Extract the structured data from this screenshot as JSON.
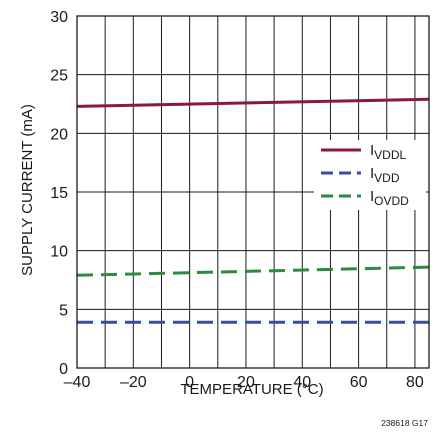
{
  "chart_data": {
    "type": "line",
    "title": "",
    "xlabel": "TEMPERATURE (°C)",
    "ylabel": "SUPPLY CURRENT (mA)",
    "xlim": [
      -40,
      85
    ],
    "ylim": [
      0,
      30
    ],
    "x_ticks": [
      "–40",
      "–20",
      "0",
      "20",
      "40",
      "60",
      "80"
    ],
    "y_ticks": [
      "0",
      "5",
      "10",
      "15",
      "20",
      "25",
      "30"
    ],
    "grid": true,
    "legend_position": "right",
    "series": [
      {
        "name": "I",
        "name_sub": "VDDL",
        "color": "#8b1a3a",
        "style": "solid",
        "x": [
          -40,
          85
        ],
        "y": [
          22.3,
          22.9
        ]
      },
      {
        "name": "I",
        "name_sub": "VDD",
        "color": "#3a4f9c",
        "style": "dashed",
        "x": [
          -40,
          85
        ],
        "y": [
          3.9,
          3.9
        ]
      },
      {
        "name": "I",
        "name_sub": "OVDD",
        "color": "#2e8b3e",
        "style": "dashed",
        "x": [
          -40,
          85
        ],
        "y": [
          7.9,
          8.6
        ]
      }
    ],
    "figure_id": "238618 G17"
  }
}
